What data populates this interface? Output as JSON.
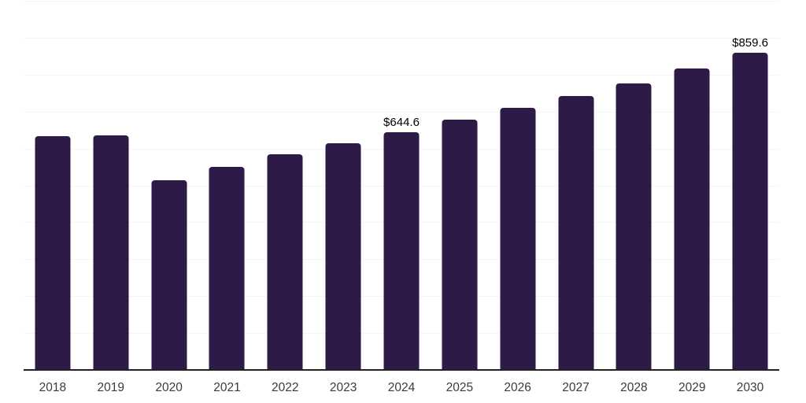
{
  "chart_data": {
    "type": "bar",
    "title": "",
    "xlabel": "",
    "ylabel": "",
    "categories": [
      "2018",
      "2019",
      "2020",
      "2021",
      "2022",
      "2023",
      "2024",
      "2025",
      "2026",
      "2027",
      "2028",
      "2029",
      "2030"
    ],
    "values": [
      633,
      636,
      514,
      551,
      585,
      614,
      644.6,
      678,
      710,
      741,
      777,
      817,
      859.6
    ],
    "data_labels": [
      "",
      "",
      "",
      "",
      "",
      "",
      "$644.6",
      "",
      "",
      "",
      "",
      "",
      "$859.6"
    ],
    "ylim": [
      0,
      1000
    ],
    "gridline_step": 100,
    "grid": "horizontal",
    "legend": "none",
    "colors": {
      "bar": "#2e1a47",
      "gridline": "#f4f4f4",
      "axis_line": "#222222",
      "tick_label": "#3b3b3b",
      "data_label": "#000000",
      "background": "#ffffff"
    }
  }
}
